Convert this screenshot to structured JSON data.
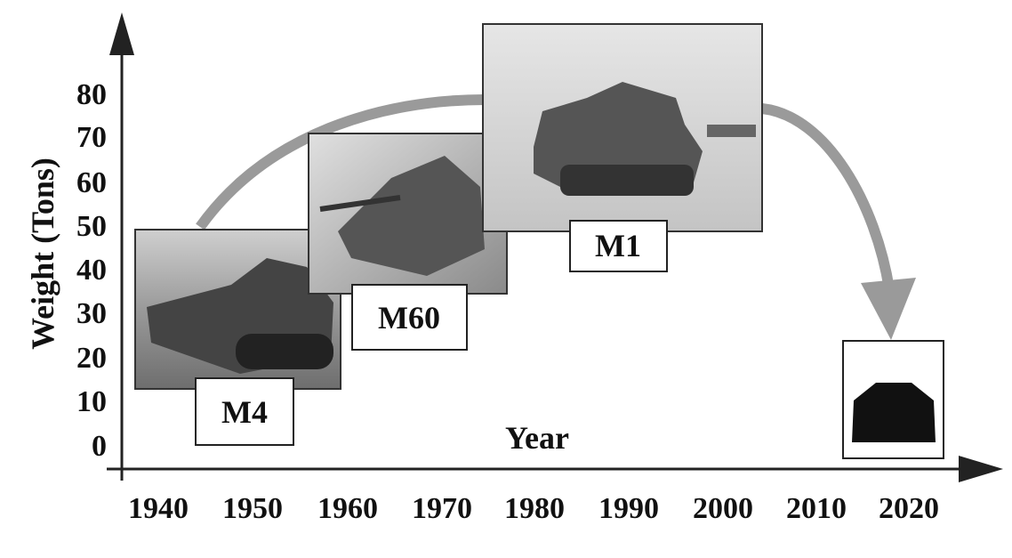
{
  "y_axis": {
    "label": "Weight (Tons)",
    "ticks": [
      "0",
      "10",
      "20",
      "30",
      "40",
      "50",
      "60",
      "70",
      "80"
    ]
  },
  "x_axis": {
    "label": "Year",
    "ticks": [
      "1940",
      "1950",
      "1960",
      "1970",
      "1980",
      "1990",
      "2000",
      "2010",
      "2020"
    ]
  },
  "tanks": [
    {
      "label": "M4"
    },
    {
      "label": "M60"
    },
    {
      "label": "M1"
    }
  ]
}
